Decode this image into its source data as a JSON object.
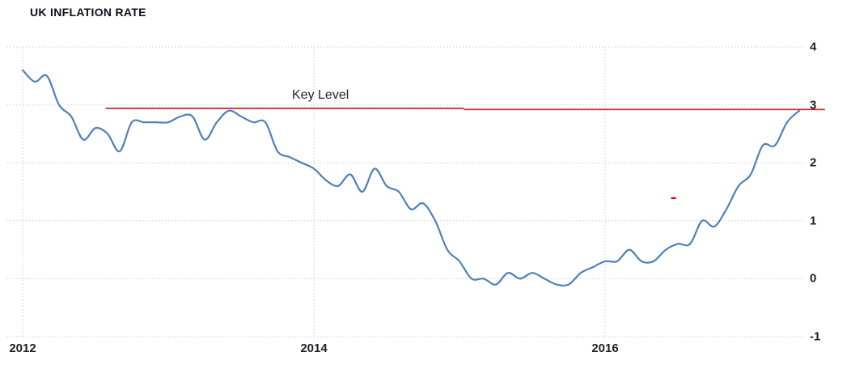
{
  "title": "UK INFLATION RATE",
  "chart_data": {
    "type": "line",
    "title": "UK INFLATION RATE",
    "xlabel": "",
    "ylabel": "",
    "x_start": {
      "year": 2012,
      "month": 1
    },
    "x_interval": "monthly",
    "x_tick_years": [
      2012,
      2014,
      2016
    ],
    "x_tick_labels": [
      "2012",
      "2014",
      "2016"
    ],
    "y_ticks": [
      4,
      3,
      2,
      1,
      0,
      -1
    ],
    "y_tick_labels": [
      "4",
      "3",
      "2",
      "1",
      "0",
      "-1"
    ],
    "ylim": [
      -1,
      4
    ],
    "grid_style": "dotted",
    "grid_color": "#cfcfcf",
    "legend_position": "none",
    "series": [
      {
        "name": "UK inflation rate (%)",
        "color": "#4e81ba",
        "values": [
          3.6,
          3.4,
          3.5,
          3.0,
          2.8,
          2.4,
          2.6,
          2.5,
          2.2,
          2.7,
          2.7,
          2.7,
          2.7,
          2.8,
          2.8,
          2.4,
          2.7,
          2.9,
          2.8,
          2.7,
          2.7,
          2.2,
          2.1,
          2.0,
          1.9,
          1.7,
          1.6,
          1.8,
          1.5,
          1.9,
          1.6,
          1.5,
          1.2,
          1.3,
          1.0,
          0.5,
          0.3,
          0.0,
          0.0,
          -0.1,
          0.1,
          0.0,
          0.1,
          0.0,
          -0.1,
          -0.1,
          0.1,
          0.2,
          0.3,
          0.3,
          0.5,
          0.3,
          0.3,
          0.5,
          0.6,
          0.6,
          1.0,
          0.9,
          1.2,
          1.6,
          1.8,
          2.3,
          2.3,
          2.7,
          2.9
        ]
      }
    ],
    "annotations": {
      "key_level": {
        "label": "Key Level",
        "color": "#cb2026",
        "segments": [
          {
            "start_year": 2012.57,
            "end_year": 2015.03,
            "value": 2.94
          },
          {
            "start_year": 2015.03,
            "end_year": 2017.51,
            "value": 2.92
          }
        ]
      },
      "red_dash": {
        "year": 2016.47,
        "value": 1.39,
        "color": "#e00000"
      }
    }
  }
}
